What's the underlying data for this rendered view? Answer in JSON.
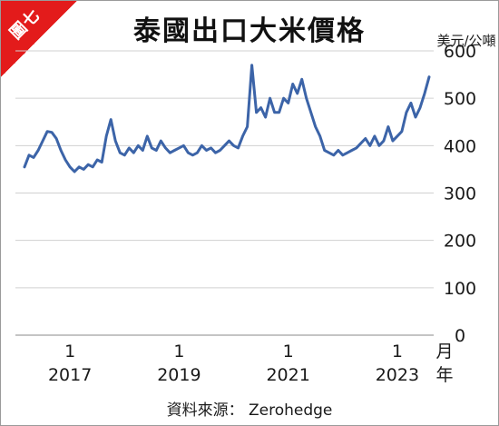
{
  "badge": {
    "text": "圖七"
  },
  "title": "泰國出口大米價格",
  "source": "資料來源： Zerohedge",
  "colors": {
    "accent": "#e31b1b",
    "line": "#3c64a8",
    "grid": "#d0d0d0"
  },
  "chart_data": {
    "type": "line",
    "unit_label": "美元/公噸",
    "ylim": [
      0,
      600
    ],
    "y_ticks": [
      0,
      100,
      200,
      300,
      400,
      500,
      600
    ],
    "y_axis_side": "right",
    "grid": true,
    "x_tick_groups": [
      {
        "month": "1",
        "year": "2017",
        "x": "2017-01"
      },
      {
        "month": "1",
        "year": "2019",
        "x": "2019-01"
      },
      {
        "month": "1",
        "year": "2021",
        "x": "2021-01"
      },
      {
        "month": "1",
        "year": "2023",
        "x": "2023-01"
      }
    ],
    "x_unit_label": [
      "月",
      "年"
    ],
    "series": [
      {
        "x": [
          "2016-03",
          "2016-04",
          "2016-05",
          "2016-06",
          "2016-07",
          "2016-08",
          "2016-09",
          "2016-10",
          "2016-11",
          "2016-12",
          "2017-01",
          "2017-02",
          "2017-03",
          "2017-04",
          "2017-05",
          "2017-06",
          "2017-07",
          "2017-08",
          "2017-09",
          "2017-10",
          "2017-11",
          "2017-12",
          "2018-01",
          "2018-02",
          "2018-03",
          "2018-04",
          "2018-05",
          "2018-06",
          "2018-07",
          "2018-08",
          "2018-09",
          "2018-10",
          "2018-11",
          "2018-12",
          "2019-01",
          "2019-02",
          "2019-03",
          "2019-04",
          "2019-05",
          "2019-06",
          "2019-07",
          "2019-08",
          "2019-09",
          "2019-10",
          "2019-11",
          "2019-12",
          "2020-01",
          "2020-02",
          "2020-03",
          "2020-04",
          "2020-05",
          "2020-06",
          "2020-07",
          "2020-08",
          "2020-09",
          "2020-10",
          "2020-11",
          "2020-12",
          "2021-01",
          "2021-02",
          "2021-03",
          "2021-04",
          "2021-05",
          "2021-06",
          "2021-07",
          "2021-08",
          "2021-09",
          "2021-10",
          "2021-11",
          "2021-12",
          "2022-01",
          "2022-02",
          "2022-03",
          "2022-04",
          "2022-05",
          "2022-06",
          "2022-07",
          "2022-08",
          "2022-09",
          "2022-10",
          "2022-11",
          "2022-12",
          "2023-01",
          "2023-02",
          "2023-03",
          "2023-04",
          "2023-05",
          "2023-06",
          "2023-07",
          "2023-08"
        ],
        "values": [
          355,
          380,
          375,
          390,
          410,
          430,
          428,
          415,
          390,
          370,
          355,
          345,
          355,
          350,
          360,
          355,
          370,
          365,
          420,
          455,
          410,
          385,
          380,
          395,
          385,
          400,
          390,
          420,
          395,
          390,
          410,
          395,
          385,
          390,
          395,
          400,
          385,
          380,
          385,
          400,
          390,
          395,
          385,
          390,
          400,
          410,
          400,
          395,
          420,
          440,
          570,
          470,
          480,
          460,
          500,
          470,
          470,
          500,
          490,
          530,
          510,
          540,
          500,
          470,
          440,
          420,
          390,
          385,
          380,
          390,
          380,
          385,
          390,
          395,
          405,
          415,
          400,
          420,
          400,
          410,
          440,
          410,
          420,
          430,
          470,
          490,
          460,
          480,
          510,
          545
        ]
      }
    ]
  }
}
